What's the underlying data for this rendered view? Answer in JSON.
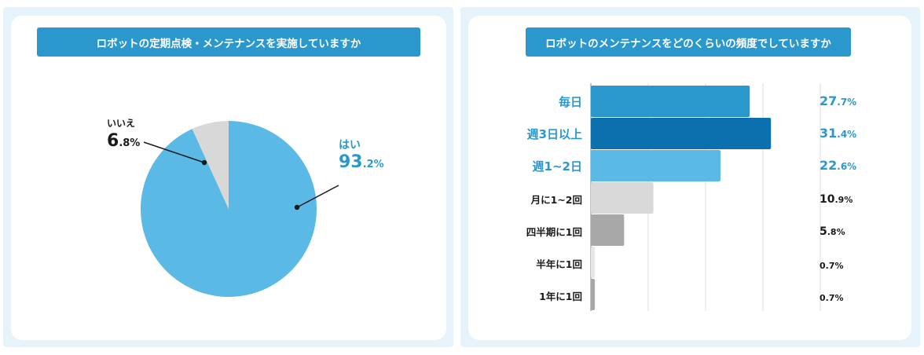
{
  "charts": {
    "left": {
      "title": "ロボットの定期点検・メンテナンスを実施していますか",
      "colors": {
        "yes": "#5bb9e6",
        "no": "#d8d8d8",
        "accent": "#2a98cd",
        "dark": "#1a1a1a"
      }
    },
    "right": {
      "title": "ロボットのメンテナンスをどのくらいの頻度でしていますか"
    }
  },
  "chart_data": [
    {
      "type": "pie",
      "title": "ロボットの定期点検・メンテナンスを実施していますか",
      "slices": [
        {
          "label": "はい",
          "value": 93.2,
          "int": "93",
          "dec": ".2%",
          "color": "#5bb9e6"
        },
        {
          "label": "いいえ",
          "value": 6.8,
          "int": "6",
          "dec": ".8%",
          "color": "#d8d8d8"
        }
      ]
    },
    {
      "type": "bar",
      "orientation": "horizontal",
      "title": "ロボットのメンテナンスをどのくらいの頻度でしていますか",
      "categories": [
        "毎日",
        "週3日以上",
        "週1~2日",
        "月に1~2回",
        "四半期に1回",
        "半年に1回",
        "1年に1回"
      ],
      "values": [
        27.7,
        31.4,
        22.6,
        10.9,
        5.8,
        0.7,
        0.7
      ],
      "value_labels": [
        {
          "int": "27",
          "dec": ".7%"
        },
        {
          "int": "31",
          "dec": ".4%"
        },
        {
          "int": "22",
          "dec": ".6%"
        },
        {
          "int": "10",
          "dec": ".9%"
        },
        {
          "int": "5",
          "dec": ".8%"
        },
        {
          "int": "0",
          "dec": ".7%"
        },
        {
          "int": "0",
          "dec": ".7%"
        }
      ],
      "bar_colors": [
        "#2a98cd",
        "#0c6fae",
        "#5bb9e6",
        "#d9d9d9",
        "#a8a8a8",
        "#e6e6e6",
        "#a8a8a8"
      ],
      "label_colors": [
        "#2a98cd",
        "#2a98cd",
        "#2a98cd",
        "#1a1a1a",
        "#1a1a1a",
        "#1a1a1a",
        "#1a1a1a"
      ],
      "xlim": [
        0,
        40
      ],
      "grid": true
    }
  ]
}
